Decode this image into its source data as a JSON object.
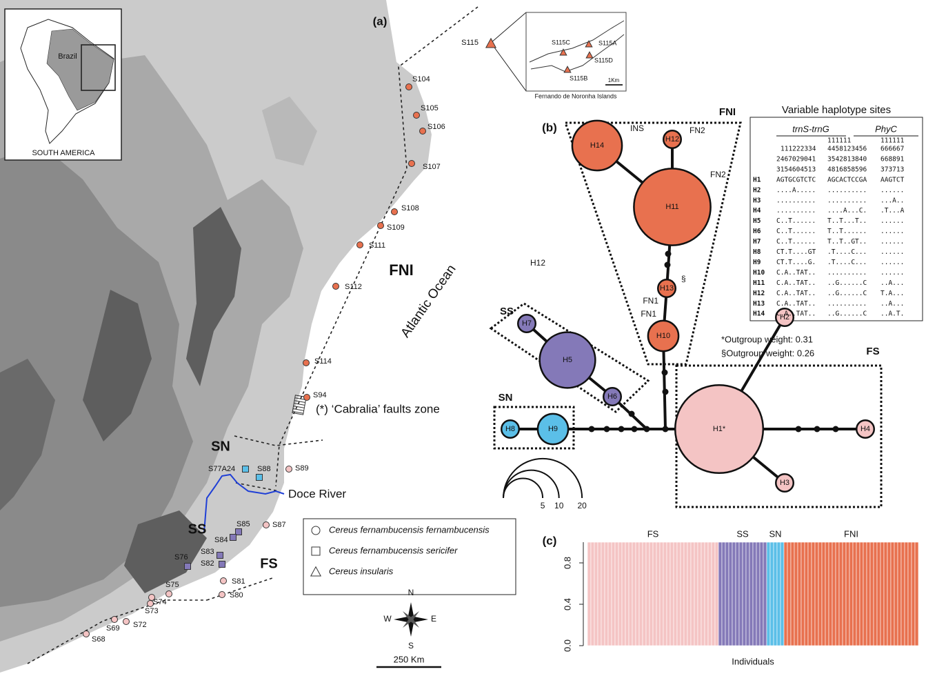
{
  "panel_labels": [
    "(a)",
    "(b)",
    "(c)"
  ],
  "map": {
    "inset": {
      "country": "Brazil",
      "continent": "SOUTH AMERICA"
    },
    "regions": [
      "FNI",
      "SN",
      "SS",
      "FS"
    ],
    "ocean": "Atlantic Ocean",
    "river": "Doce River",
    "fault_zone": "(*) ‘Cabralia’ faults zone",
    "scale_bar": "250 Km",
    "compass": [
      "N",
      "E",
      "S",
      "W"
    ],
    "sites": [
      {
        "label": "S104",
        "shape": "circle",
        "color": "#e8714f"
      },
      {
        "label": "S105",
        "shape": "circle",
        "color": "#e8714f"
      },
      {
        "label": "S106",
        "shape": "circle",
        "color": "#e8714f"
      },
      {
        "label": "S107",
        "shape": "circle",
        "color": "#e8714f"
      },
      {
        "label": "S108",
        "shape": "circle",
        "color": "#e8714f"
      },
      {
        "label": "S109",
        "shape": "circle",
        "color": "#e8714f"
      },
      {
        "label": "S111",
        "shape": "circle",
        "color": "#e8714f"
      },
      {
        "label": "S112",
        "shape": "circle",
        "color": "#e8714f"
      },
      {
        "label": "S114",
        "shape": "circle",
        "color": "#e8714f"
      },
      {
        "label": "S94",
        "shape": "circle",
        "color": "#e8714f"
      },
      {
        "label": "S89",
        "shape": "circle",
        "color": "#f4c4c4"
      },
      {
        "label": "S87",
        "shape": "circle",
        "color": "#f4c4c4"
      },
      {
        "label": "S81",
        "shape": "circle",
        "color": "#f4c4c4"
      },
      {
        "label": "S80",
        "shape": "circle",
        "color": "#f4c4c4"
      },
      {
        "label": "S75",
        "shape": "circle",
        "color": "#f4c4c4"
      },
      {
        "label": "S74",
        "shape": "circle",
        "color": "#f4c4c4"
      },
      {
        "label": "S73",
        "shape": "circle",
        "color": "#f4c4c4"
      },
      {
        "label": "S72",
        "shape": "circle",
        "color": "#f4c4c4"
      },
      {
        "label": "S69",
        "shape": "circle",
        "color": "#f4c4c4"
      },
      {
        "label": "S68",
        "shape": "circle",
        "color": "#f4c4c4"
      },
      {
        "label": "S77A24",
        "shape": "square",
        "color": "#5bbfe8"
      },
      {
        "label": "S88",
        "shape": "square",
        "color": "#5bbfe8"
      },
      {
        "label": "S85",
        "shape": "square",
        "color": "#8479b8"
      },
      {
        "label": "S84",
        "shape": "square",
        "color": "#8479b8"
      },
      {
        "label": "S83",
        "shape": "square",
        "color": "#8479b8"
      },
      {
        "label": "S82",
        "shape": "square",
        "color": "#8479b8"
      },
      {
        "label": "S76",
        "shape": "square",
        "color": "#8479b8"
      },
      {
        "label": "S115",
        "shape": "triangle",
        "color": "#e8714f"
      }
    ],
    "island_inset": {
      "title": "Fernando de Noronha Islands",
      "scale": "1Km",
      "sites": [
        "S115A",
        "S115B",
        "S115C",
        "S115D"
      ]
    },
    "legend": [
      {
        "shape": "circle",
        "label": "Cereus fernambucensis fernambucensis"
      },
      {
        "shape": "square",
        "label": "Cereus fernambucensis sericifer"
      },
      {
        "shape": "triangle",
        "label": "Cereus insularis"
      }
    ]
  },
  "network": {
    "groups": [
      "FNI",
      "SS",
      "SN",
      "FS"
    ],
    "nodes": [
      {
        "label": "H14",
        "size": 8,
        "color": "#e8714f"
      },
      {
        "label": "H12",
        "size": 1,
        "color": "#e8714f"
      },
      {
        "label": "H11",
        "size": 19,
        "color": "#e8714f"
      },
      {
        "label": "H13",
        "size": 1,
        "color": "#e8714f"
      },
      {
        "label": "H10",
        "size": 3,
        "color": "#e8714f"
      },
      {
        "label": "H7",
        "size": 1,
        "color": "#8479b8"
      },
      {
        "label": "H5",
        "size": 10,
        "color": "#8479b8"
      },
      {
        "label": "H6",
        "size": 1,
        "color": "#8479b8"
      },
      {
        "label": "H8",
        "size": 1,
        "color": "#5bbfe8"
      },
      {
        "label": "H9",
        "size": 3,
        "color": "#5bbfe8"
      },
      {
        "label": "H1*",
        "size": 25,
        "color": "#f4c4c4"
      },
      {
        "label": "H2",
        "size": 1,
        "color": "#f4c4c4"
      },
      {
        "label": "H3",
        "size": 1,
        "color": "#f4c4c4"
      },
      {
        "label": "H4",
        "size": 1,
        "color": "#f4c4c4"
      }
    ],
    "annotations": [
      "INS",
      "FN2",
      "FN2",
      "FN1",
      "§",
      "FN1",
      "H12"
    ],
    "notes": [
      "*Outgroup weight: 0.31",
      "§Outgroup weight: 0.26"
    ],
    "size_legend": [
      5,
      10,
      20
    ]
  },
  "haplotype_table": {
    "title": "Variable haplotype sites",
    "genes": [
      "trnS-trnG",
      "PhyC"
    ],
    "position_hundreds": [
      "111111",
      "111111"
    ],
    "position_rows": [
      [
        "111222334",
        "4458123456",
        "666667"
      ],
      [
        "2467029041",
        "3542813840",
        "668891"
      ],
      [
        "3154604513",
        "4816858596",
        "373713"
      ]
    ],
    "rows": [
      {
        "label": "H1",
        "cells": [
          "AGTGCGTCTC",
          "AGCACTCCGA",
          "AAGTCT"
        ]
      },
      {
        "label": "H2",
        "cells": [
          "....A.....",
          "..........",
          "......"
        ]
      },
      {
        "label": "H3",
        "cells": [
          "..........",
          "..........",
          "...A.."
        ]
      },
      {
        "label": "H4",
        "cells": [
          "..........",
          "....A...C.",
          ".T...A"
        ]
      },
      {
        "label": "H5",
        "cells": [
          "C..T......",
          "T..T...T..",
          "......"
        ]
      },
      {
        "label": "H6",
        "cells": [
          "C..T......",
          "T..T......",
          "......"
        ]
      },
      {
        "label": "H7",
        "cells": [
          "C..T......",
          "T..T..GT..",
          "......"
        ]
      },
      {
        "label": "H8",
        "cells": [
          "CT.T....GT",
          ".T....C...",
          "......"
        ]
      },
      {
        "label": "H9",
        "cells": [
          "CT.T....G.",
          ".T....C...",
          "......"
        ]
      },
      {
        "label": "H10",
        "cells": [
          "C.A..TAT..",
          "..........",
          "......"
        ]
      },
      {
        "label": "H11",
        "cells": [
          "C.A..TAT..",
          "..G......C",
          "..A..."
        ]
      },
      {
        "label": "H12",
        "cells": [
          "C.A..TAT..",
          "..G......C",
          "T.A..."
        ]
      },
      {
        "label": "H13",
        "cells": [
          "C.A..TAT..",
          "..........",
          "..A..."
        ]
      },
      {
        "label": "H14",
        "cells": [
          "C.A..TAT..",
          "..G......C",
          "..A.T."
        ]
      }
    ]
  },
  "chart_data": {
    "type": "bar",
    "xlabel": "Individuals",
    "ylim": [
      0,
      1
    ],
    "yticks": [
      {
        "value": 0,
        "label": "0.0"
      },
      {
        "value": 0.4,
        "label": "0.4"
      },
      {
        "value": 0.8,
        "label": "0.8"
      }
    ],
    "series": [
      {
        "name": "FS",
        "color": "#f4c4c4",
        "values": [
          1,
          1,
          1,
          1,
          1,
          1,
          1,
          1,
          1,
          1,
          1,
          1,
          1,
          1,
          1,
          1,
          1,
          1,
          1,
          1,
          1,
          1,
          1,
          1,
          1,
          1,
          1,
          1,
          1,
          1,
          1,
          1,
          1,
          1,
          1,
          1,
          1,
          1
        ]
      },
      {
        "name": "SS",
        "color": "#8479b8",
        "values": [
          1,
          1,
          1,
          1,
          1,
          1,
          1,
          1,
          1,
          1,
          1,
          1,
          1,
          1
        ]
      },
      {
        "name": "SN",
        "color": "#5bbfe8",
        "values": [
          1,
          1,
          1,
          1,
          1
        ]
      },
      {
        "name": "FNI",
        "color": "#e8714f",
        "values": [
          1,
          1,
          1,
          1,
          1,
          1,
          1,
          1,
          1,
          1,
          1,
          1,
          1,
          1,
          1,
          1,
          1,
          1,
          1,
          1,
          1,
          1,
          1,
          1,
          1,
          1,
          1,
          1,
          1,
          1,
          1,
          1,
          1,
          1,
          1,
          1,
          1,
          1,
          1
        ]
      }
    ]
  }
}
